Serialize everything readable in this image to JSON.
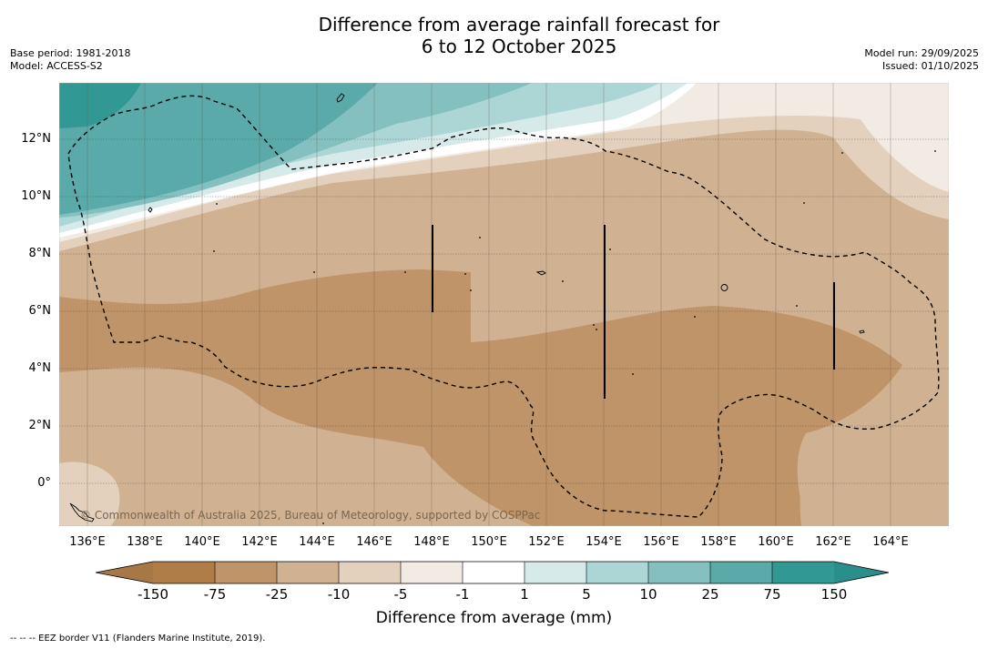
{
  "title": {
    "line1": "Difference from average rainfall forecast for",
    "line2": "6 to 12 October 2025"
  },
  "meta_left": {
    "base_period": "Base period: 1981-2018",
    "model": "Model: ACCESS-S2"
  },
  "meta_right": {
    "model_run": "Model run: 29/09/2025",
    "issued": "Issued: 01/10/2025"
  },
  "map": {
    "lat_labels": [
      {
        "lat": 12,
        "text": "12°N"
      },
      {
        "lat": 10,
        "text": "10°N"
      },
      {
        "lat": 8,
        "text": "8°N"
      },
      {
        "lat": 6,
        "text": "6°N"
      },
      {
        "lat": 4,
        "text": "4°N"
      },
      {
        "lat": 2,
        "text": "2°N"
      },
      {
        "lat": 0,
        "text": "0°"
      }
    ],
    "lon_labels": [
      {
        "lon": 136,
        "text": "136°E"
      },
      {
        "lon": 138,
        "text": "138°E"
      },
      {
        "lon": 140,
        "text": "140°E"
      },
      {
        "lon": 142,
        "text": "142°E"
      },
      {
        "lon": 144,
        "text": "144°E"
      },
      {
        "lon": 146,
        "text": "146°E"
      },
      {
        "lon": 148,
        "text": "148°E"
      },
      {
        "lon": 150,
        "text": "150°E"
      },
      {
        "lon": 152,
        "text": "152°E"
      },
      {
        "lon": 154,
        "text": "154°E"
      },
      {
        "lon": 156,
        "text": "156°E"
      },
      {
        "lon": 158,
        "text": "158°E"
      },
      {
        "lon": 160,
        "text": "160°E"
      },
      {
        "lon": 162,
        "text": "162°E"
      },
      {
        "lon": 164,
        "text": "164°E"
      }
    ],
    "copyright": "© Commonwealth of Australia 2025, Bureau of Meteorology, supported by COSPPac"
  },
  "colorbar": {
    "ticks": [
      "-150",
      "-75",
      "-25",
      "-10",
      "-5",
      "-1",
      "1",
      "5",
      "10",
      "25",
      "75",
      "150"
    ],
    "colors": {
      "extend_low": "#a67848",
      "b1": "#b07c48",
      "b2": "#bf9468",
      "b3": "#d0b292",
      "b4": "#e3d1bd",
      "b5": "#f2ebe4",
      "b6": "#ffffff",
      "b7": "#d5eae9",
      "b8": "#acd6d5",
      "b9": "#84c0bf",
      "b10": "#59aaa9",
      "b11": "#319893",
      "extend_high": "#2a8f8b"
    },
    "label": "Difference from average (mm)"
  },
  "footnote": "--  --  -- EEZ border V11 (Flanders Marine Institute, 2019)."
}
